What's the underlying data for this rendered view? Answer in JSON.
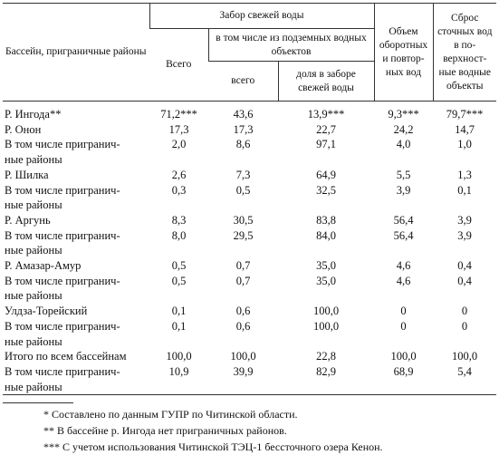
{
  "table": {
    "header": {
      "basin": "Бассейн, приграничные районы",
      "intake": "Забор свежей воды",
      "intake_total": "Всего",
      "underground": "в том числе из подземных водных объектов",
      "underground_total": "всего",
      "underground_share": "доля в заборе свежей воды",
      "recycled": "Объем оборотных и повтор-ных вод",
      "discharge": "Сброс сточных вод в по-верхност-ные водные объекты"
    },
    "rows": [
      [
        [
          "Р. Ингода**"
        ],
        "71,2***",
        "43,6",
        "13,9***",
        "9,3***",
        "79,7***"
      ],
      [
        [
          "Р. Онон"
        ],
        "17,3",
        "17,3",
        "22,7",
        "24,2",
        "14,7"
      ],
      [
        [
          "В том числе пригранич-",
          "ные районы"
        ],
        "2,0",
        "8,6",
        "97,1",
        "4,0",
        "1,0"
      ],
      [
        [
          "Р. Шилка"
        ],
        "2,6",
        "7,3",
        "64,9",
        "5,5",
        "1,3"
      ],
      [
        [
          "В том числе пригранич-",
          "ные районы"
        ],
        "0,3",
        "0,5",
        "32,5",
        "3,9",
        "0,1"
      ],
      [
        [
          "Р. Аргунь"
        ],
        "8,3",
        "30,5",
        "83,8",
        "56,4",
        "3,9"
      ],
      [
        [
          "В том числе пригранич-",
          "ные районы"
        ],
        "8,0",
        "29,5",
        "84,0",
        "56,4",
        "3,9"
      ],
      [
        [
          "Р. Амазар-Амур"
        ],
        "0,5",
        "0,7",
        "35,0",
        "4,6",
        "0,4"
      ],
      [
        [
          "В том числе пригранич-",
          "ные районы"
        ],
        "0,5",
        "0,7",
        "35,0",
        "4,6",
        "0,4"
      ],
      [
        [
          "Улдза-Торейский"
        ],
        "0,1",
        "0,6",
        "100,0",
        "0",
        "0"
      ],
      [
        [
          "В том числе пригранич-",
          "ные районы"
        ],
        "0,1",
        "0,6",
        "100,0",
        "0",
        "0"
      ],
      [
        [
          "Итого по всем бассейнам"
        ],
        "100,0",
        "100,0",
        "22,8",
        "100,0",
        "100,0"
      ],
      [
        [
          "В том числе пригранич-",
          "ные районы"
        ],
        "10,9",
        "39,9",
        "82,9",
        "68,9",
        "5,4"
      ]
    ]
  },
  "footnotes": [
    "* Составлено по данным ГУПР по Читинской области.",
    "** В бассейне р. Ингода нет приграничных районов.",
    "*** С учетом использования Читинской ТЭЦ-1 бессточного озера Кенон."
  ]
}
